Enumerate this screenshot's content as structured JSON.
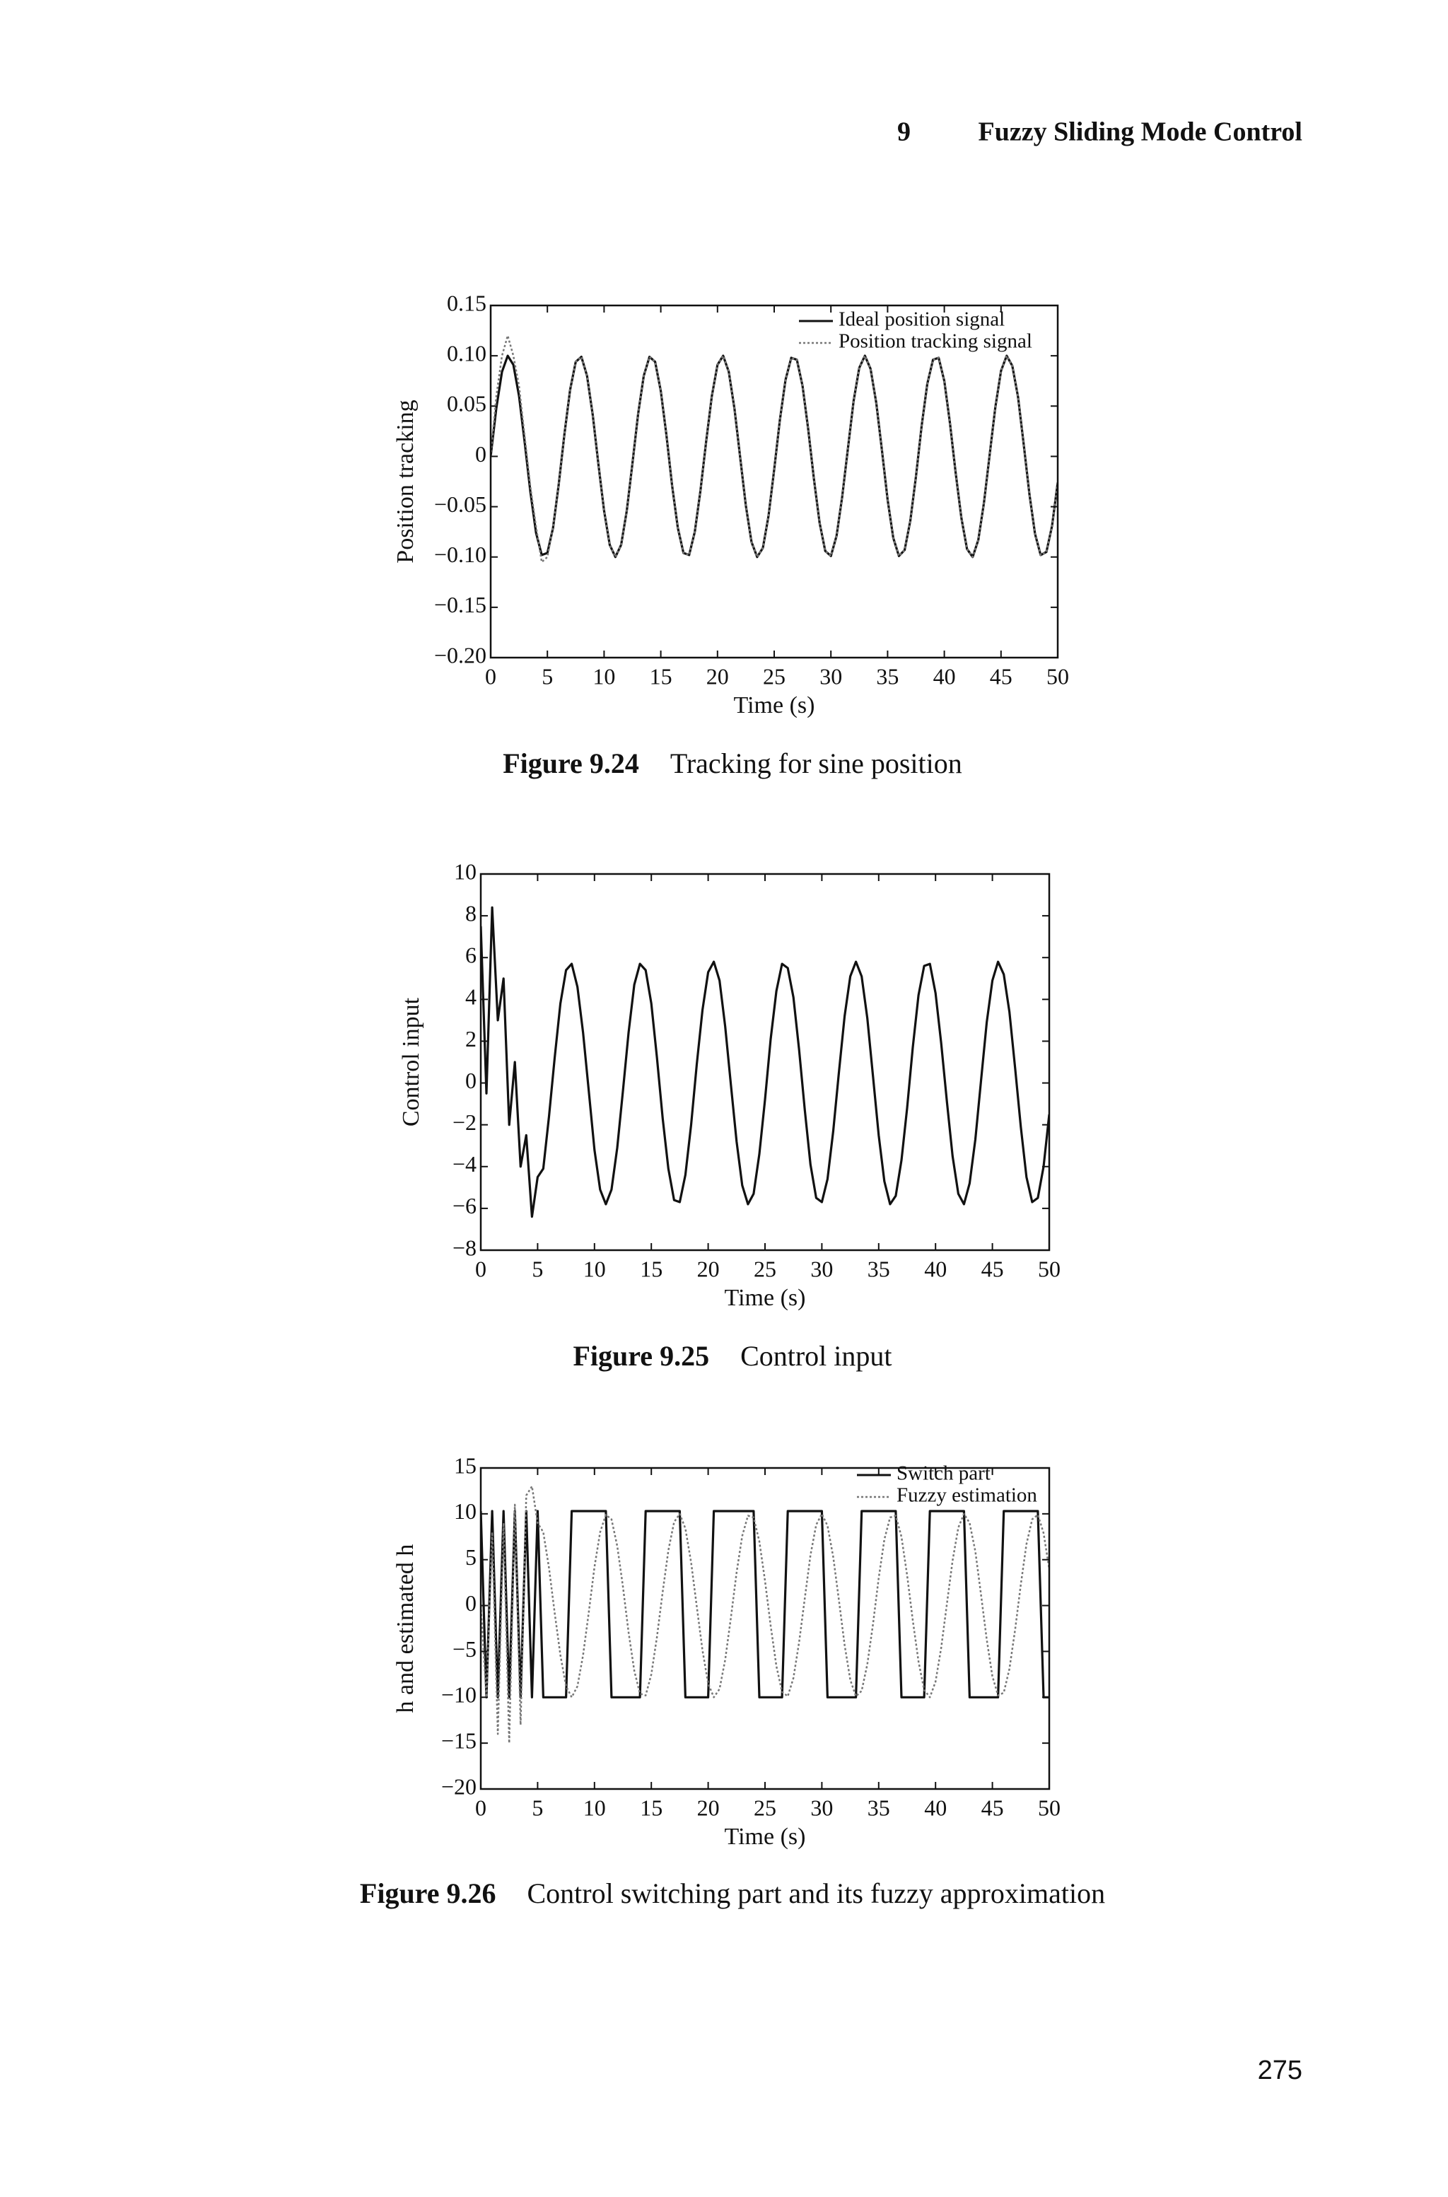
{
  "header": {
    "chapter": "9",
    "title": "Fuzzy Sliding Mode Control"
  },
  "page_number": "275",
  "chart_data": [
    {
      "type": "line",
      "caption_label": "Figure 9.24",
      "caption": "Tracking for sine position",
      "x_label": "Time (s)",
      "y_label": "Position tracking",
      "legend": "upper right",
      "xlim": [
        0,
        50
      ],
      "xticks": [
        0,
        5,
        10,
        15,
        20,
        25,
        30,
        35,
        40,
        45,
        50
      ],
      "ylim": [
        -0.2,
        0.15
      ],
      "yticks": [
        {
          "value": -0.2,
          "label": "−0.20"
        },
        {
          "value": -0.15,
          "label": "−0.15"
        },
        {
          "value": -0.1,
          "label": "−0.10"
        },
        {
          "value": -0.05,
          "label": "−0.05"
        },
        0,
        0.05,
        {
          "value": 0.1,
          "label": "0.10"
        },
        0.15
      ],
      "x": [
        0,
        0.5,
        1,
        1.5,
        2,
        2.5,
        3,
        3.5,
        4,
        4.5,
        5,
        5.5,
        6,
        6.5,
        7,
        7.5,
        8,
        8.5,
        9,
        9.5,
        10,
        10.5,
        11,
        11.5,
        12,
        12.5,
        13,
        13.5,
        14,
        14.5,
        15,
        15.5,
        16,
        16.5,
        17,
        17.5,
        18,
        18.5,
        19,
        19.5,
        20,
        20.5,
        21,
        21.5,
        22,
        22.5,
        23,
        23.5,
        24,
        24.5,
        25,
        25.5,
        26,
        26.5,
        27,
        27.5,
        28,
        28.5,
        29,
        29.5,
        30,
        30.5,
        31,
        31.5,
        32,
        32.5,
        33,
        33.5,
        34,
        34.5,
        35,
        35.5,
        36,
        36.5,
        37,
        37.5,
        38,
        38.5,
        39,
        39.5,
        40,
        40.5,
        41,
        41.5,
        42,
        42.5,
        43,
        43.5,
        44,
        44.5,
        45,
        45.5,
        46,
        46.5,
        47,
        47.5,
        48,
        48.5,
        49,
        49.5,
        50
      ],
      "series": [
        {
          "name": "Ideal position signal",
          "color": "#111111",
          "style": "solid",
          "values": [
            0,
            0.048,
            0.084,
            0.1,
            0.091,
            0.06,
            0.014,
            -0.035,
            -0.076,
            -0.098,
            -0.096,
            -0.071,
            -0.028,
            0.022,
            0.066,
            0.094,
            0.099,
            0.08,
            0.041,
            -0.008,
            -0.054,
            -0.088,
            -0.1,
            -0.088,
            -0.054,
            -0.007,
            0.042,
            0.08,
            0.099,
            0.094,
            0.065,
            0.021,
            -0.029,
            -0.071,
            -0.096,
            -0.098,
            -0.075,
            -0.034,
            0.015,
            0.06,
            0.091,
            0.1,
            0.084,
            0.047,
            -0.001,
            -0.049,
            -0.085,
            -0.1,
            -0.091,
            -0.059,
            -0.013,
            0.036,
            0.076,
            0.098,
            0.096,
            0.07,
            0.027,
            -0.022,
            -0.066,
            -0.094,
            -0.099,
            -0.079,
            -0.04,
            0.008,
            0.055,
            0.088,
            0.1,
            0.087,
            0.053,
            0.006,
            -0.043,
            -0.081,
            -0.099,
            -0.093,
            -0.064,
            -0.02,
            0.03,
            0.072,
            0.096,
            0.098,
            0.075,
            0.033,
            -0.016,
            -0.061,
            -0.092,
            -0.1,
            -0.083,
            -0.046,
            0.002,
            0.049,
            0.085,
            0.1,
            0.09,
            0.059,
            0.012,
            -0.037,
            -0.077,
            -0.098,
            -0.095,
            -0.069,
            -0.026
          ]
        },
        {
          "name": "Position tracking signal",
          "color": "#777777",
          "style": "dotted",
          "values": [
            0,
            0.06,
            0.1,
            0.12,
            0.1,
            0.07,
            0.02,
            -0.03,
            -0.07,
            -0.105,
            -0.1,
            -0.07,
            -0.028,
            0.022,
            0.066,
            0.094,
            0.099,
            0.08,
            0.041,
            -0.008,
            -0.054,
            -0.088,
            -0.1,
            -0.088,
            -0.054,
            -0.007,
            0.042,
            0.08,
            0.099,
            0.094,
            0.065,
            0.021,
            -0.029,
            -0.071,
            -0.096,
            -0.098,
            -0.075,
            -0.034,
            0.015,
            0.06,
            0.091,
            0.1,
            0.084,
            0.047,
            -0.001,
            -0.049,
            -0.085,
            -0.1,
            -0.091,
            -0.059,
            -0.013,
            0.036,
            0.076,
            0.098,
            0.096,
            0.07,
            0.027,
            -0.022,
            -0.066,
            -0.094,
            -0.099,
            -0.079,
            -0.04,
            0.008,
            0.055,
            0.088,
            0.1,
            0.087,
            0.053,
            0.006,
            -0.043,
            -0.081,
            -0.099,
            -0.093,
            -0.064,
            -0.02,
            0.03,
            0.072,
            0.096,
            0.098,
            0.075,
            0.033,
            -0.016,
            -0.061,
            -0.092,
            -0.1,
            -0.083,
            -0.046,
            0.002,
            0.049,
            0.085,
            0.1,
            0.09,
            0.059,
            0.012,
            -0.037,
            -0.077,
            -0.098,
            -0.095,
            -0.069,
            -0.026
          ]
        }
      ]
    },
    {
      "type": "line",
      "caption_label": "Figure 9.25",
      "caption": "Control input",
      "x_label": "Time (s)",
      "y_label": "Control input",
      "xlim": [
        0,
        50
      ],
      "xticks": [
        0,
        5,
        10,
        15,
        20,
        25,
        30,
        35,
        40,
        45,
        50
      ],
      "ylim": [
        -8,
        10
      ],
      "yticks": [
        {
          "value": -8,
          "label": "−8"
        },
        {
          "value": -6,
          "label": "−6"
        },
        {
          "value": -4,
          "label": "−4"
        },
        {
          "value": -2,
          "label": "−2"
        },
        0,
        2,
        4,
        6,
        8,
        10
      ],
      "x": [
        0,
        0.5,
        1,
        1.5,
        2,
        2.5,
        3,
        3.5,
        4,
        4.5,
        5,
        5.5,
        6,
        6.5,
        7,
        7.5,
        8,
        8.5,
        9,
        9.5,
        10,
        10.5,
        11,
        11.5,
        12,
        12.5,
        13,
        13.5,
        14,
        14.5,
        15,
        15.5,
        16,
        16.5,
        17,
        17.5,
        18,
        18.5,
        19,
        19.5,
        20,
        20.5,
        21,
        21.5,
        22,
        22.5,
        23,
        23.5,
        24,
        24.5,
        25,
        25.5,
        26,
        26.5,
        27,
        27.5,
        28,
        28.5,
        29,
        29.5,
        30,
        30.5,
        31,
        31.5,
        32,
        32.5,
        33,
        33.5,
        34,
        34.5,
        35,
        35.5,
        36,
        36.5,
        37,
        37.5,
        38,
        38.5,
        39,
        39.5,
        40,
        40.5,
        41,
        41.5,
        42,
        42.5,
        43,
        43.5,
        44,
        44.5,
        45,
        45.5,
        46,
        46.5,
        47,
        47.5,
        48,
        48.5,
        49,
        49.5,
        50
      ],
      "series": [
        {
          "color": "#111111",
          "style": "solid",
          "values": [
            7.5,
            -0.5,
            8.4,
            3,
            5,
            -2,
            1,
            -4,
            -2.5,
            -6.4,
            -4.5,
            -4.1,
            -1.6,
            1.2,
            3.8,
            5.4,
            5.7,
            4.6,
            2.4,
            -0.4,
            -3.2,
            -5.1,
            -5.8,
            -5.1,
            -3.1,
            -0.4,
            2.4,
            4.7,
            5.7,
            5.4,
            3.8,
            1.2,
            -1.7,
            -4.1,
            -5.6,
            -5.7,
            -4.4,
            -2.0,
            0.9,
            3.5,
            5.3,
            5.8,
            4.9,
            2.7,
            -0.1,
            -2.8,
            -4.9,
            -5.8,
            -5.3,
            -3.4,
            -0.8,
            2.1,
            4.4,
            5.7,
            5.5,
            4.1,
            1.6,
            -1.3,
            -3.9,
            -5.5,
            -5.7,
            -4.6,
            -2.3,
            0.5,
            3.2,
            5.1,
            5.8,
            5.1,
            3.1,
            0.3,
            -2.5,
            -4.7,
            -5.8,
            -5.4,
            -3.7,
            -1.2,
            1.7,
            4.2,
            5.6,
            5.7,
            4.3,
            1.9,
            -0.9,
            -3.5,
            -5.3,
            -5.8,
            -4.8,
            -2.7,
            0.1,
            2.9,
            4.9,
            5.8,
            5.2,
            3.4,
            0.7,
            -2.1,
            -4.5,
            -5.7,
            -5.5,
            -4.0,
            -1.5
          ]
        }
      ]
    },
    {
      "type": "line",
      "caption_label": "Figure 9.26",
      "caption": "Control switching part and its fuzzy approximation",
      "x_label": "Time (s)",
      "y_label": "h and estimated h",
      "legend": "upper right",
      "xlim": [
        0,
        50
      ],
      "xticks": [
        0,
        5,
        10,
        15,
        20,
        25,
        30,
        35,
        40,
        45,
        50
      ],
      "ylim": [
        -20,
        15
      ],
      "yticks": [
        {
          "value": -20,
          "label": "−20"
        },
        {
          "value": -15,
          "label": "−15"
        },
        {
          "value": -10,
          "label": "−10"
        },
        {
          "value": -5,
          "label": "−5"
        },
        0,
        5,
        10,
        15
      ],
      "x": [
        0,
        0.5,
        1,
        1.5,
        2,
        2.5,
        3,
        3.5,
        4,
        4.5,
        5,
        5.5,
        6,
        6.5,
        7,
        7.5,
        8,
        8.5,
        9,
        9.5,
        10,
        10.5,
        11,
        11.5,
        12,
        12.5,
        13,
        13.5,
        14,
        14.5,
        15,
        15.5,
        16,
        16.5,
        17,
        17.5,
        18,
        18.5,
        19,
        19.5,
        20,
        20.5,
        21,
        21.5,
        22,
        22.5,
        23,
        23.5,
        24,
        24.5,
        25,
        25.5,
        26,
        26.5,
        27,
        27.5,
        28,
        28.5,
        29,
        29.5,
        30,
        30.5,
        31,
        31.5,
        32,
        32.5,
        33,
        33.5,
        34,
        34.5,
        35,
        35.5,
        36,
        36.5,
        37,
        37.5,
        38,
        38.5,
        39,
        39.5,
        40,
        40.5,
        41,
        41.5,
        42,
        42.5,
        43,
        43.5,
        44,
        44.5,
        45,
        45.5,
        46,
        46.5,
        47,
        47.5,
        48,
        48.5,
        49,
        49.5,
        50
      ],
      "series": [
        {
          "name": "Switch part",
          "color": "#111111",
          "style": "solid",
          "values": [
            10.3,
            -10,
            10.3,
            -10,
            10.3,
            -10,
            10.3,
            -10,
            10.3,
            -10,
            10.3,
            -10,
            -10,
            -10,
            -10,
            -10,
            10.3,
            10.3,
            10.3,
            10.3,
            10.3,
            10.3,
            10.3,
            -10,
            -10,
            -10,
            -10,
            -10,
            -10,
            10.3,
            10.3,
            10.3,
            10.3,
            10.3,
            10.3,
            10.3,
            -10,
            -10,
            -10,
            -10,
            -10,
            10.3,
            10.3,
            10.3,
            10.3,
            10.3,
            10.3,
            10.3,
            10.3,
            -10,
            -10,
            -10,
            -10,
            -10,
            10.3,
            10.3,
            10.3,
            10.3,
            10.3,
            10.3,
            10.3,
            -10,
            -10,
            -10,
            -10,
            -10,
            -10,
            10.3,
            10.3,
            10.3,
            10.3,
            10.3,
            10.3,
            10.3,
            -10,
            -10,
            -10,
            -10,
            -10,
            10.3,
            10.3,
            10.3,
            10.3,
            10.3,
            10.3,
            10.3,
            -10,
            -10,
            -10,
            -10,
            -10,
            -10,
            10.3,
            10.3,
            10.3,
            10.3,
            10.3,
            10.3,
            10.3,
            -10,
            -10
          ]
        },
        {
          "name": "Fuzzy estimation",
          "color": "#777777",
          "style": "dotted",
          "values": [
            0,
            -10,
            8,
            -14,
            9,
            -15,
            11,
            -13,
            12,
            13,
            9,
            8.0,
            4.1,
            -0.8,
            -5.4,
            -8.8,
            -10.0,
            -8.8,
            -5.4,
            -0.7,
            4.2,
            8.0,
            9.9,
            9.4,
            6.5,
            2.1,
            -2.9,
            -7.1,
            -9.6,
            -9.8,
            -7.5,
            -3.4,
            1.5,
            6.0,
            9.1,
            10.0,
            8.4,
            4.7,
            -0.1,
            -4.9,
            -8.5,
            -10.0,
            -9.1,
            -5.9,
            -1.3,
            3.6,
            7.6,
            9.8,
            9.6,
            7.0,
            2.7,
            -2.2,
            -6.6,
            -9.4,
            -9.9,
            -7.9,
            -4.0,
            0.8,
            5.5,
            8.8,
            10.0,
            8.7,
            5.3,
            0.6,
            -4.3,
            -8.1,
            -9.9,
            -9.3,
            -6.4,
            -2.0,
            3.0,
            7.2,
            9.6,
            9.8,
            7.5,
            3.3,
            -1.6,
            -6.1,
            -9.2,
            -10.0,
            -8.3,
            -4.6,
            0.2,
            4.9,
            8.5,
            10.0,
            9.0,
            5.9,
            1.2,
            -3.7,
            -7.7,
            -9.8,
            -9.5,
            -6.9,
            -2.6,
            2.3,
            6.7,
            9.4,
            9.9,
            7.9,
            4.0
          ]
        }
      ]
    }
  ]
}
